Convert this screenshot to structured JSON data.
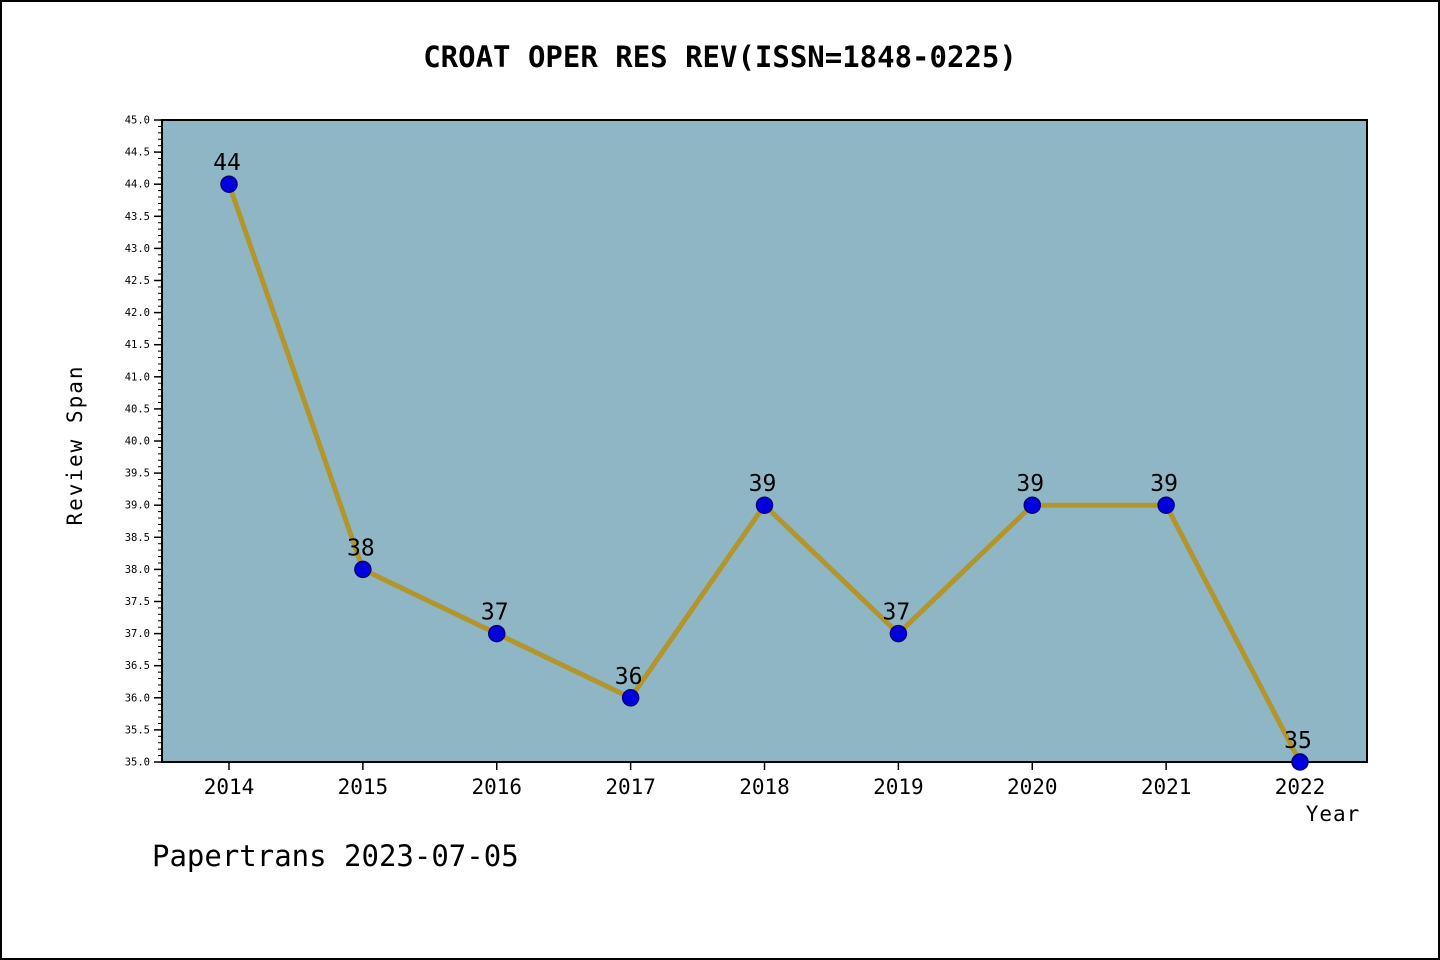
{
  "header": {
    "title": "CROAT OPER RES REV(ISSN=1848-0225)"
  },
  "footer": {
    "watermark": "Papertrans 2023-07-05"
  },
  "chart_data": {
    "type": "line",
    "title": "CROAT OPER RES REV(ISSN=1848-0225)",
    "xlabel": "Year",
    "ylabel": "Review Span",
    "x": [
      2014,
      2015,
      2016,
      2017,
      2018,
      2019,
      2020,
      2021,
      2022
    ],
    "values": [
      44,
      38,
      37,
      36,
      39,
      37,
      39,
      39,
      35
    ],
    "point_labels": [
      "44",
      "38",
      "37",
      "36",
      "39",
      "37",
      "39",
      "39",
      "35"
    ],
    "ylim": [
      35.0,
      45.0
    ],
    "y_major_step": 0.5,
    "y_minor_step": 0.1,
    "y_tick_decimals": 1,
    "grid": false,
    "legend": "none",
    "colors": {
      "plot_bg": "#8fb6c4",
      "line": "#b2952b",
      "marker_fill": "#0000dd",
      "marker_edge": "#000080",
      "axis": "#000000",
      "text": "#000000"
    }
  }
}
